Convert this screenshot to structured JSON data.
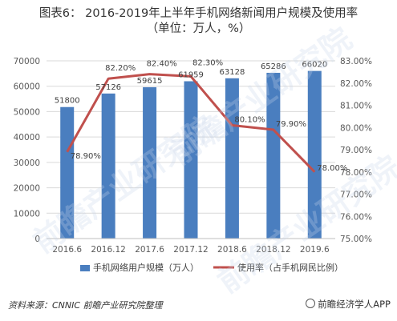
{
  "title_line1": "图表6：  2016-2019年上半年手机网络新闻用户规模及使用率",
  "title_line2": "（单位：万人，%）",
  "source": "资料来源：CNNIC 前瞻产业研究院整理",
  "brand": "前瞻经济学人APP",
  "watermark": "前瞻产业研究院",
  "colors": {
    "bar": "#4a7ebf",
    "line": "#c0504d",
    "grid": "#d9d9d9",
    "text": "#595959"
  },
  "chart_data": {
    "type": "bar",
    "categories": [
      "2016.6",
      "2016.12",
      "2017.6",
      "2017.12",
      "2018.6",
      "2018.12",
      "2019.6"
    ],
    "series": [
      {
        "name": "手机网络用户规模（万人）",
        "type": "bar",
        "axis": "left",
        "values": [
          51800,
          57126,
          59615,
          61959,
          63128,
          65286,
          66020
        ]
      },
      {
        "name": "使用率（占手机网民比例）",
        "type": "line",
        "axis": "right",
        "values": [
          78.9,
          82.2,
          82.4,
          82.3,
          80.1,
          79.9,
          78.0
        ]
      }
    ],
    "left_axis": {
      "min": 0,
      "max": 70000,
      "step": 10000
    },
    "right_axis": {
      "min": 75.0,
      "max": 83.0,
      "step": 1.0
    },
    "bar_labels": [
      "51800",
      "57126",
      "59615",
      "61959",
      "63128",
      "65286",
      "66020"
    ],
    "line_labels": [
      "78.90%",
      "82.20%",
      "82.40%",
      "82.30%",
      "80.10%",
      "79.90%",
      "78.00%"
    ],
    "grid": true,
    "legend_position": "bottom"
  }
}
